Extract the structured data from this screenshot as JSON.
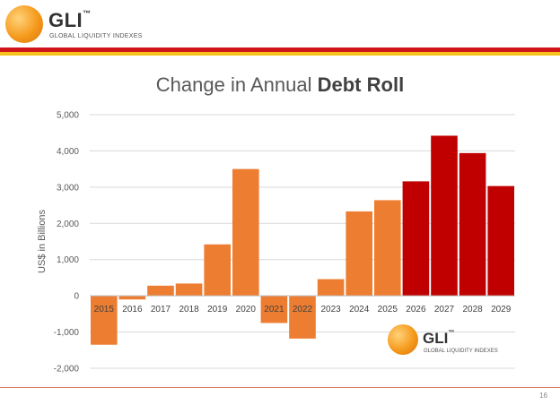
{
  "brand": {
    "name": "GLI",
    "mark": "™",
    "subtitle": "GLOBAL LIQUIDITY INDEXES",
    "red": "#d0161c",
    "yellow": "#f6c21b"
  },
  "title": {
    "normal": "Change in Annual ",
    "bold": "Debt Roll"
  },
  "page_number": "16",
  "chart_data": {
    "type": "bar",
    "title": "Change in Annual Debt Roll",
    "xlabel": "",
    "ylabel": "US$ in Billions",
    "ylim": [
      -2000,
      5000
    ],
    "yticks": [
      5000,
      4000,
      3000,
      2000,
      1000,
      0,
      -1000,
      -2000
    ],
    "ytick_labels": [
      "5,000",
      "4,000",
      "3,000",
      "2,000",
      "1,000",
      "0",
      "-1,000",
      "-2,000"
    ],
    "grid": true,
    "categories": [
      "2015",
      "2016",
      "2017",
      "2018",
      "2019",
      "2020",
      "2021",
      "2022",
      "2023",
      "2024",
      "2025",
      "2026",
      "2027",
      "2028",
      "2029"
    ],
    "values": [
      -1350,
      -100,
      280,
      340,
      1420,
      3500,
      -750,
      -1180,
      460,
      2330,
      2640,
      3160,
      4420,
      3940,
      3030
    ],
    "colors": [
      "#ed7d31",
      "#ed7d31",
      "#ed7d31",
      "#ed7d31",
      "#ed7d31",
      "#ed7d31",
      "#ed7d31",
      "#ed7d31",
      "#ed7d31",
      "#ed7d31",
      "#ed7d31",
      "#c00000",
      "#c00000",
      "#c00000",
      "#c00000"
    ]
  }
}
